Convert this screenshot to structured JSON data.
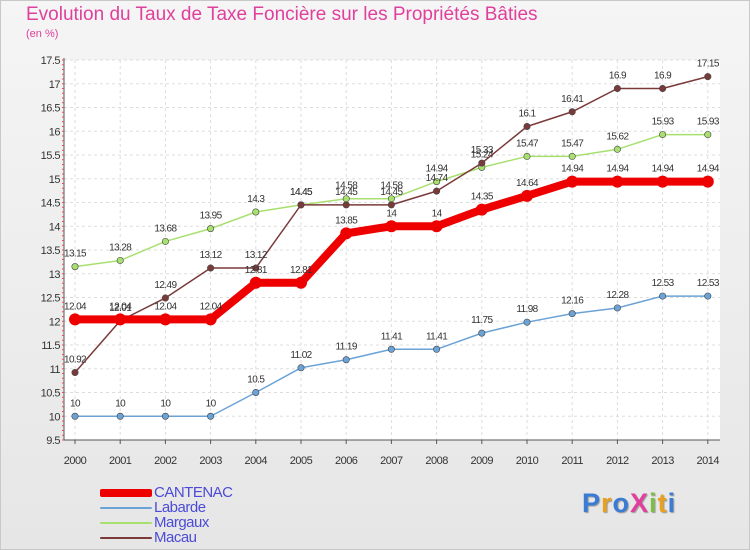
{
  "header": {
    "title": "Evolution du Taux de Taxe Foncière sur les Propriétés Bâties",
    "unit": "(en %)"
  },
  "logo": {
    "text": "ProXiti",
    "letters": [
      {
        "ch": "P",
        "color": "#3a7bd5"
      },
      {
        "ch": "r",
        "color": "#e8a020"
      },
      {
        "ch": "o",
        "color": "#3a7bd5"
      },
      {
        "ch": "X",
        "color": "#e0409c"
      },
      {
        "ch": "i",
        "color": "#7bc043"
      },
      {
        "ch": "t",
        "color": "#e8a020"
      },
      {
        "ch": "i",
        "color": "#3a7bd5"
      }
    ]
  },
  "chart_data": {
    "type": "line",
    "title": "Evolution du Taux de Taxe Foncière sur les Propriétés Bâties",
    "ylabel": "(en %)",
    "xlabel": "",
    "ylim": [
      9.5,
      17.5
    ],
    "yticks": [
      "9.5",
      "10",
      "10.5",
      "11",
      "11.5",
      "12",
      "12.5",
      "13",
      "13.5",
      "14",
      "14.5",
      "15",
      "15.5",
      "16",
      "16.5",
      "17",
      "17.5"
    ],
    "categories": [
      "2000",
      "2001",
      "2002",
      "2003",
      "2004",
      "2005",
      "2006",
      "2007",
      "2008",
      "2009",
      "2010",
      "2011",
      "2012",
      "2013",
      "2014"
    ],
    "grid": true,
    "series": [
      {
        "name": "Labarde",
        "color": "#6ba3d6",
        "values": [
          10,
          10,
          10,
          10,
          10.5,
          11.02,
          11.19,
          11.41,
          11.41,
          11.75,
          11.98,
          12.16,
          12.28,
          12.53,
          12.53
        ],
        "labels": [
          "10",
          "10",
          "10",
          "10",
          "10.5",
          "11.02",
          "11.19",
          "11.41",
          "11.41",
          "11.75",
          "11.98",
          "12.16",
          "12.28",
          "12.53",
          "12.53"
        ]
      },
      {
        "name": "Margaux",
        "color": "#a8e070",
        "values": [
          13.15,
          13.28,
          13.68,
          13.95,
          14.3,
          14.45,
          14.58,
          14.58,
          14.94,
          15.24,
          15.47,
          15.47,
          15.62,
          15.93,
          15.93
        ],
        "labels": [
          "13.15",
          "13.28",
          "13.68",
          "13.95",
          "14.3",
          "14.45",
          "14.58",
          "14.58",
          "14.94",
          "15.24",
          "15.47",
          "15.47",
          "15.62",
          "15.93",
          "15.93"
        ]
      },
      {
        "name": "Macau",
        "color": "#7a3a3a",
        "values": [
          10.92,
          12.01,
          12.49,
          13.12,
          13.12,
          14.45,
          14.45,
          14.45,
          14.74,
          15.33,
          16.1,
          16.41,
          16.9,
          16.9,
          17.15
        ],
        "labels": [
          "10.92",
          "12.01",
          "12.49",
          "13.12",
          "13.12",
          "14.45",
          "14.45",
          "14.45",
          "14.74",
          "15.33",
          "16.1",
          "16.41",
          "16.9",
          "16.9",
          "17.15"
        ]
      },
      {
        "name": "CANTENAC",
        "color": "#ee0000",
        "values": [
          12.04,
          12.04,
          12.04,
          12.04,
          12.81,
          12.81,
          13.85,
          14,
          14,
          14.35,
          14.64,
          14.94,
          14.94,
          14.94,
          14.94
        ],
        "labels": [
          "12.04",
          "12.04",
          "12.04",
          "12.04",
          "12.81",
          "12.81",
          "13.85",
          "14",
          "14",
          "14.35",
          "14.64",
          "14.94",
          "14.94",
          "14.94",
          "14.94"
        ]
      }
    ]
  },
  "legend": {
    "items": [
      {
        "name": "CANTENAC",
        "color": "#ee0000",
        "thickness": 8
      },
      {
        "name": "Labarde",
        "color": "#6ba3d6",
        "thickness": 2
      },
      {
        "name": "Margaux",
        "color": "#a8e070",
        "thickness": 2
      },
      {
        "name": "Macau",
        "color": "#7a3a3a",
        "thickness": 2
      }
    ]
  }
}
